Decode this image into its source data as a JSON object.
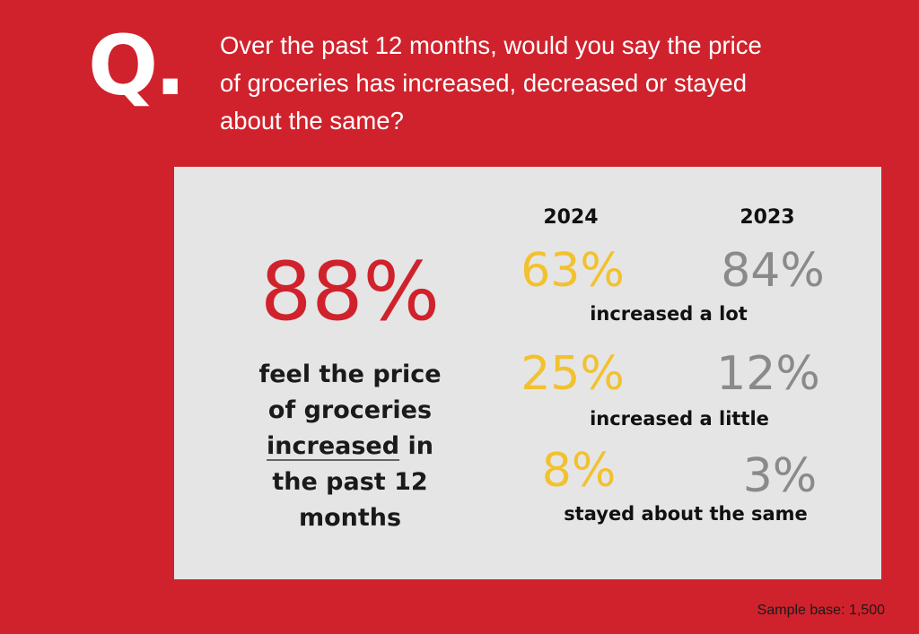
{
  "header": {
    "q_mark": "Q.",
    "question_lines": [
      "Over the past 12 months, would you say the price",
      "of groceries has increased, decreased or stayed",
      "about the same?"
    ]
  },
  "headline": {
    "value": "88%",
    "statement_lines": [
      "feel the price",
      "of groceries"
    ],
    "underlined_word": "increased",
    "statement_line3_rest": " in",
    "statement_lines_after": [
      "the past 12",
      "months"
    ]
  },
  "comparison": {
    "years": [
      "2024",
      "2023"
    ],
    "rows": [
      {
        "label": "increased a lot",
        "v2024": "63%",
        "v2023": "84%"
      },
      {
        "label": "increased a little",
        "v2024": "25%",
        "v2023": "12%"
      },
      {
        "label": "stayed about the same",
        "v2024": "8%",
        "v2023": "3%"
      }
    ]
  },
  "footer": {
    "sample_base": "Sample base: 1,500"
  },
  "colors": {
    "background": "#D0222C",
    "panel": "#E5E5E5",
    "year_2024": "#F2C12E",
    "year_2023": "#8A8A8A",
    "headline": "#D0222C"
  }
}
